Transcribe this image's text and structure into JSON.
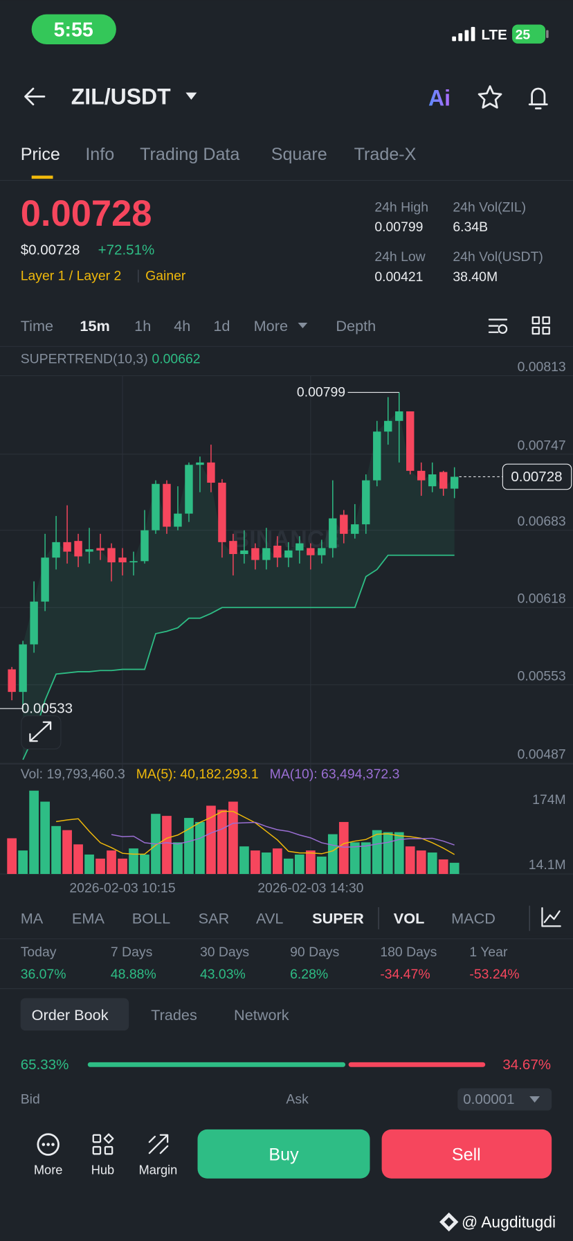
{
  "status_bar": {
    "time": "5:55",
    "network": "LTE",
    "battery": "25"
  },
  "header": {
    "pair": "ZIL/USDT",
    "ai": "Ai"
  },
  "tabs": [
    "Price",
    "Info",
    "Trading Data",
    "Square",
    "Trade-X"
  ],
  "ticker": {
    "price": "0.00728",
    "usd_price": "$0.00728",
    "change": "+72.51%",
    "tags": [
      "Layer 1 / Layer 2",
      "Gainer"
    ]
  },
  "stats": [
    {
      "label": "24h High",
      "value": "0.00799"
    },
    {
      "label": "24h Vol(ZIL)",
      "value": "6.34B"
    },
    {
      "label": "24h Low",
      "value": "0.00421"
    },
    {
      "label": "24h Vol(USDT)",
      "value": "38.40M"
    }
  ],
  "intervals": [
    "Time",
    "15m",
    "1h",
    "4h",
    "1d",
    "More",
    "Depth"
  ],
  "chart_data": [
    {
      "type": "candlestick",
      "watermark": "BINANCE",
      "up_color": "#2ebd85",
      "down_color": "#f6465d",
      "open": [
        0.00566,
        0.00547,
        0.00587,
        0.00623,
        0.0066,
        0.00673,
        0.00674,
        0.00665,
        0.00668,
        0.00668,
        0.0066,
        0.00656,
        0.00657,
        0.00683,
        0.00722,
        0.00686,
        0.00697,
        0.00738,
        0.0074,
        0.00723,
        0.00674,
        0.00663,
        0.00668,
        0.00658,
        0.0067,
        0.0066,
        0.00666,
        0.00668,
        0.00662,
        0.00668,
        0.00696,
        0.0068,
        0.00688,
        0.00725,
        0.00766,
        0.00775,
        0.00783,
        0.00733,
        0.0072,
        0.00732,
        0.00718
      ],
      "high": [
        0.00568,
        0.0059,
        0.0064,
        0.0068,
        0.00695,
        0.00704,
        0.0068,
        0.00685,
        0.0068,
        0.00672,
        0.00668,
        0.00665,
        0.007,
        0.00725,
        0.00725,
        0.0072,
        0.0074,
        0.00745,
        0.00755,
        0.00726,
        0.0068,
        0.00683,
        0.00672,
        0.00685,
        0.00678,
        0.00673,
        0.00678,
        0.00672,
        0.00675,
        0.00725,
        0.007,
        0.00705,
        0.0073,
        0.00775,
        0.00795,
        0.00799,
        0.00783,
        0.0074,
        0.0074,
        0.00733,
        0.00736
      ],
      "low": [
        0.0054,
        0.00533,
        0.0058,
        0.00615,
        0.0065,
        0.00655,
        0.00652,
        0.00655,
        0.00658,
        0.0064,
        0.00645,
        0.00645,
        0.00655,
        0.0068,
        0.0068,
        0.00683,
        0.0069,
        0.00715,
        0.00715,
        0.0066,
        0.00645,
        0.00655,
        0.0065,
        0.0065,
        0.00652,
        0.00652,
        0.00655,
        0.0065,
        0.00655,
        0.0066,
        0.00672,
        0.00676,
        0.0068,
        0.0072,
        0.00755,
        0.0074,
        0.0073,
        0.00712,
        0.00715,
        0.00712,
        0.0071
      ],
      "close": [
        0.00547,
        0.00587,
        0.00623,
        0.0066,
        0.00673,
        0.00665,
        0.00661,
        0.00667,
        0.00666,
        0.00656,
        0.00656,
        0.00657,
        0.00683,
        0.00722,
        0.00686,
        0.00697,
        0.00738,
        0.0074,
        0.00723,
        0.00673,
        0.00663,
        0.00666,
        0.00658,
        0.00668,
        0.0066,
        0.00666,
        0.00672,
        0.00662,
        0.00668,
        0.00693,
        0.0068,
        0.00688,
        0.00725,
        0.00766,
        0.00775,
        0.00783,
        0.00733,
        0.00725,
        0.0073,
        0.00718,
        0.00728
      ],
      "series": [
        {
          "name": "SUPERTREND(10,3)",
          "color": "#2ebd85",
          "values": [
            null,
            0.0049,
            0.0051,
            0.0054,
            0.00562,
            0.00563,
            0.00564,
            0.00564,
            0.00565,
            0.00565,
            0.00566,
            0.00566,
            0.00566,
            0.00596,
            0.00598,
            0.00601,
            0.00609,
            0.00609,
            0.00613,
            0.00618,
            0.00618,
            0.00618,
            0.00618,
            0.00618,
            0.00618,
            0.00618,
            0.00618,
            0.00618,
            0.00618,
            0.00618,
            0.00618,
            0.00618,
            0.00644,
            0.0065,
            0.00662,
            0.00662,
            0.00662,
            0.00662,
            0.00662,
            0.00662,
            0.00662
          ]
        }
      ],
      "ylim": [
        0.00487,
        0.00813
      ],
      "yticks": [
        0.00813,
        0.00747,
        0.00683,
        0.00618,
        0.00553,
        0.00487
      ],
      "grid": true
    },
    {
      "type": "bar",
      "legend": [
        "Vol: 19,793,460.3",
        "MA(5): 40,182,293.1",
        "MA(10): 63,494,372.3"
      ],
      "categories": [
        null,
        null,
        null,
        null,
        null,
        null,
        null,
        null,
        null,
        null,
        "2026-02-03 10:15",
        null,
        null,
        null,
        null,
        null,
        null,
        null,
        null,
        null,
        null,
        null,
        null,
        null,
        null,
        null,
        null,
        "2026-02-03 14:30",
        null,
        null,
        null,
        null,
        null,
        null,
        null,
        null,
        null,
        null,
        null,
        null,
        null
      ],
      "values": [
        80,
        50,
        197,
        170,
        110,
        100,
        65,
        40,
        30,
        50,
        30,
        55,
        40,
        140,
        135,
        70,
        130,
        120,
        160,
        150,
        170,
        60,
        50,
        45,
        55,
        30,
        40,
        50,
        35,
        90,
        120,
        70,
        70,
        100,
        95,
        95,
        60,
        50,
        45,
        28,
        19.7934603
      ],
      "series": [
        {
          "color": "#f0b90b",
          "values": [
            null,
            null,
            null,
            null,
            121,
            125,
            128,
            97,
            69,
            57,
            43,
            41,
            41,
            63,
            80,
            88,
            103,
            119,
            131,
            146,
            146,
            132,
            118,
            97,
            76,
            48,
            44,
            44,
            42,
            49,
            67,
            73,
            77,
            90,
            91,
            86,
            84,
            80,
            69,
            55.6,
            40.1822931
          ]
        },
        {
          "color": "#9b6fd4",
          "values": [
            null,
            null,
            null,
            null,
            null,
            null,
            null,
            null,
            null,
            89,
            84,
            85,
            69,
            66,
            69,
            66,
            72,
            80,
            93,
            103,
            117,
            118,
            119,
            109,
            101,
            97,
            88,
            81,
            69,
            63,
            58,
            59,
            61,
            66,
            70,
            77,
            79,
            79,
            80,
            73,
            63.4943723
          ]
        }
      ],
      "ylim": [
        0,
        206
      ],
      "yticks": [
        {
          "value": 174,
          "label": "174M"
        },
        {
          "value": 14.1,
          "label": "14.1M"
        }
      ]
    }
  ],
  "indicators": [
    "MA",
    "EMA",
    "BOLL",
    "SAR",
    "AVL",
    "SUPER",
    "VOL",
    "MACD"
  ],
  "performance": [
    {
      "period": "Today",
      "value": 36.07,
      "label": "36.07%"
    },
    {
      "period": "7 Days",
      "value": 48.88,
      "label": "48.88%"
    },
    {
      "period": "30 Days",
      "value": 43.03,
      "label": "43.03%"
    },
    {
      "period": "90 Days",
      "value": 6.28,
      "label": "6.28%"
    },
    {
      "period": "180 Days",
      "value": -34.47,
      "label": "-34.47%"
    },
    {
      "period": "1 Year",
      "value": -53.24,
      "label": "-53.24%"
    }
  ],
  "order_book": {
    "tabs": [
      "Order Book",
      "Trades",
      "Network"
    ],
    "bid_ratio": {
      "value": 65.33,
      "label": "65.33%"
    },
    "ask_ratio": {
      "value": 34.67,
      "label": "34.67%"
    },
    "bid": "Bid",
    "ask": "Ask",
    "precision": "0.00001"
  },
  "bottom_bar": {
    "nav": [
      "More",
      "Hub",
      "Margin"
    ],
    "buy": "Buy",
    "sell": "Sell"
  },
  "watermark": "@ Augditugdi"
}
